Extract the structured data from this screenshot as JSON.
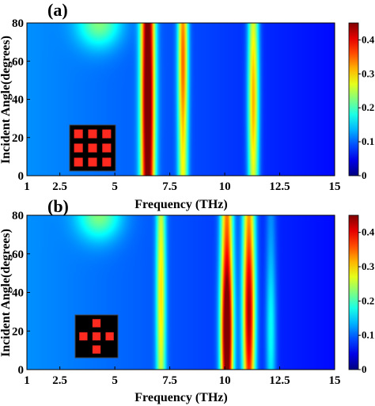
{
  "figure": {
    "colormap": "jet",
    "colormap_stops": [
      "#00008f",
      "#0000ff",
      "#00ffff",
      "#ffff00",
      "#ff0000",
      "#800000"
    ],
    "unit_cell_background": "#000000",
    "unit_cell_patch_color": "#ff2a1f"
  },
  "chart_data": [
    {
      "type": "heatmap",
      "panel_label": "(a)",
      "xlabel": "Frequency (THz)",
      "ylabel": "Incident Angle(degrees)",
      "xlim": [
        1,
        15
      ],
      "ylim": [
        0,
        80
      ],
      "xticks": [
        1,
        2.5,
        5,
        7.5,
        10,
        12.5,
        15
      ],
      "xtick_labels": [
        "1",
        "2.5",
        "5",
        "7.5",
        "10",
        "12.5",
        "15"
      ],
      "yticks": [
        0,
        20,
        40,
        60,
        80
      ],
      "ytick_labels": [
        "0",
        "20",
        "40",
        "60",
        "80"
      ],
      "colorbar": {
        "range": [
          0,
          0.45
        ],
        "ticks": [
          0,
          0.1,
          0.2,
          0.3,
          0.4
        ],
        "tick_labels": [
          "0",
          "0.1",
          "0.2",
          "0.3",
          "0.4"
        ]
      },
      "background_field": {
        "low_freq_level": 0.12,
        "high_freq_level": 0.06,
        "hotspot_freq": 4.3,
        "hotspot_angle": 80,
        "hotspot_peak": 0.24
      },
      "resonances": [
        {
          "frequency": 6.5,
          "width": 0.22,
          "peak": 0.42,
          "peak_at_angle": 40,
          "min_peak": 0.36
        },
        {
          "frequency": 8.1,
          "width": 0.16,
          "peak": 0.26,
          "peak_at_angle": 60,
          "min_peak": 0.18
        },
        {
          "frequency": 11.3,
          "width": 0.17,
          "peak": 0.24,
          "peak_at_angle": 40,
          "min_peak": 0.16
        }
      ],
      "unit_cell": {
        "pattern": "3x3 square array",
        "cells": [
          [
            1,
            1,
            1
          ],
          [
            1,
            1,
            1
          ],
          [
            1,
            1,
            1
          ]
        ]
      }
    },
    {
      "type": "heatmap",
      "panel_label": "(b)",
      "xlabel": "Frequency (THz)",
      "ylabel": "Incident Angle(degrees)",
      "xlim": [
        1,
        15
      ],
      "ylim": [
        0,
        80
      ],
      "xticks": [
        1,
        2.5,
        5,
        7.5,
        10,
        12.5,
        15
      ],
      "xtick_labels": [
        "1",
        "2.5",
        "5",
        "7.5",
        "10",
        "12.5",
        "15"
      ],
      "yticks": [
        0,
        20,
        40,
        60,
        80
      ],
      "ytick_labels": [
        "0",
        "20",
        "40",
        "60",
        "80"
      ],
      "colorbar": {
        "range": [
          0,
          0.45
        ],
        "ticks": [
          0,
          0.1,
          0.2,
          0.3,
          0.4
        ],
        "tick_labels": [
          "0",
          "0.1",
          "0.2",
          "0.3",
          "0.4"
        ]
      },
      "background_field": {
        "low_freq_level": 0.12,
        "high_freq_level": 0.06,
        "hotspot_freq": 4.3,
        "hotspot_angle": 80,
        "hotspot_peak": 0.24
      },
      "resonances": [
        {
          "frequency": 7.1,
          "width": 0.15,
          "peak": 0.2,
          "peak_at_angle": 40,
          "min_peak": 0.14
        },
        {
          "frequency": 10.1,
          "width": 0.2,
          "peak": 0.44,
          "peak_at_angle": 20,
          "min_peak": 0.24
        },
        {
          "frequency": 11.1,
          "width": 0.2,
          "peak": 0.36,
          "peak_at_angle": 30,
          "min_peak": 0.22
        },
        {
          "frequency": 12.1,
          "width": 0.16,
          "peak": 0.1,
          "peak_at_angle": 20,
          "min_peak": 0.04
        }
      ],
      "unit_cell": {
        "pattern": "cross with center square",
        "cells": [
          [
            0,
            1,
            0
          ],
          [
            1,
            1,
            1
          ],
          [
            0,
            1,
            0
          ]
        ]
      }
    }
  ]
}
